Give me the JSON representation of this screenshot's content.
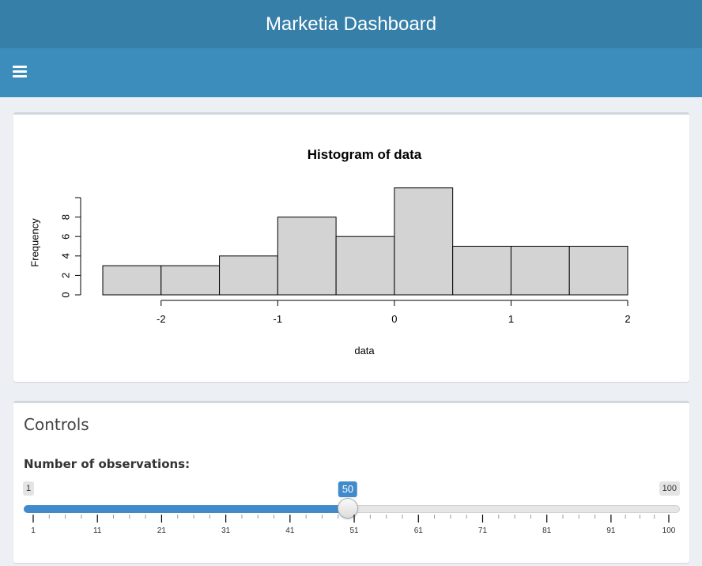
{
  "header": {
    "title": "Marketia Dashboard"
  },
  "nav": {
    "menu_icon": "hamburger-icon"
  },
  "plot": {
    "chart_data": {
      "type": "bar",
      "title": "Histogram of data",
      "xlabel": "data",
      "ylabel": "Frequency",
      "bins": [
        {
          "from": -2.5,
          "to": -2.0,
          "count": 3
        },
        {
          "from": -2.0,
          "to": -1.5,
          "count": 3
        },
        {
          "from": -1.5,
          "to": -1.0,
          "count": 4
        },
        {
          "from": -1.0,
          "to": -0.5,
          "count": 8
        },
        {
          "from": -0.5,
          "to": 0.0,
          "count": 6
        },
        {
          "from": 0.0,
          "to": 0.5,
          "count": 11
        },
        {
          "from": 0.5,
          "to": 1.0,
          "count": 5
        },
        {
          "from": 1.0,
          "to": 1.5,
          "count": 5
        },
        {
          "from": 1.5,
          "to": 2.0,
          "count": 5
        }
      ],
      "xlim": [
        -2.5,
        2.0
      ],
      "xticks": [
        -2,
        -1,
        0,
        1,
        2
      ],
      "yticks": [
        0,
        2,
        4,
        6,
        8
      ],
      "ylim": [
        0,
        10
      ],
      "bar_color": "#d3d3d3",
      "grid": false
    }
  },
  "controls": {
    "title": "Controls",
    "obs_label": "Number of observations:",
    "slider": {
      "min": 1,
      "max": 100,
      "value": 50,
      "tick_labels": [
        "1",
        "11",
        "21",
        "31",
        "41",
        "51",
        "61",
        "71",
        "81",
        "91",
        "100"
      ],
      "accent": "#428bca"
    }
  }
}
